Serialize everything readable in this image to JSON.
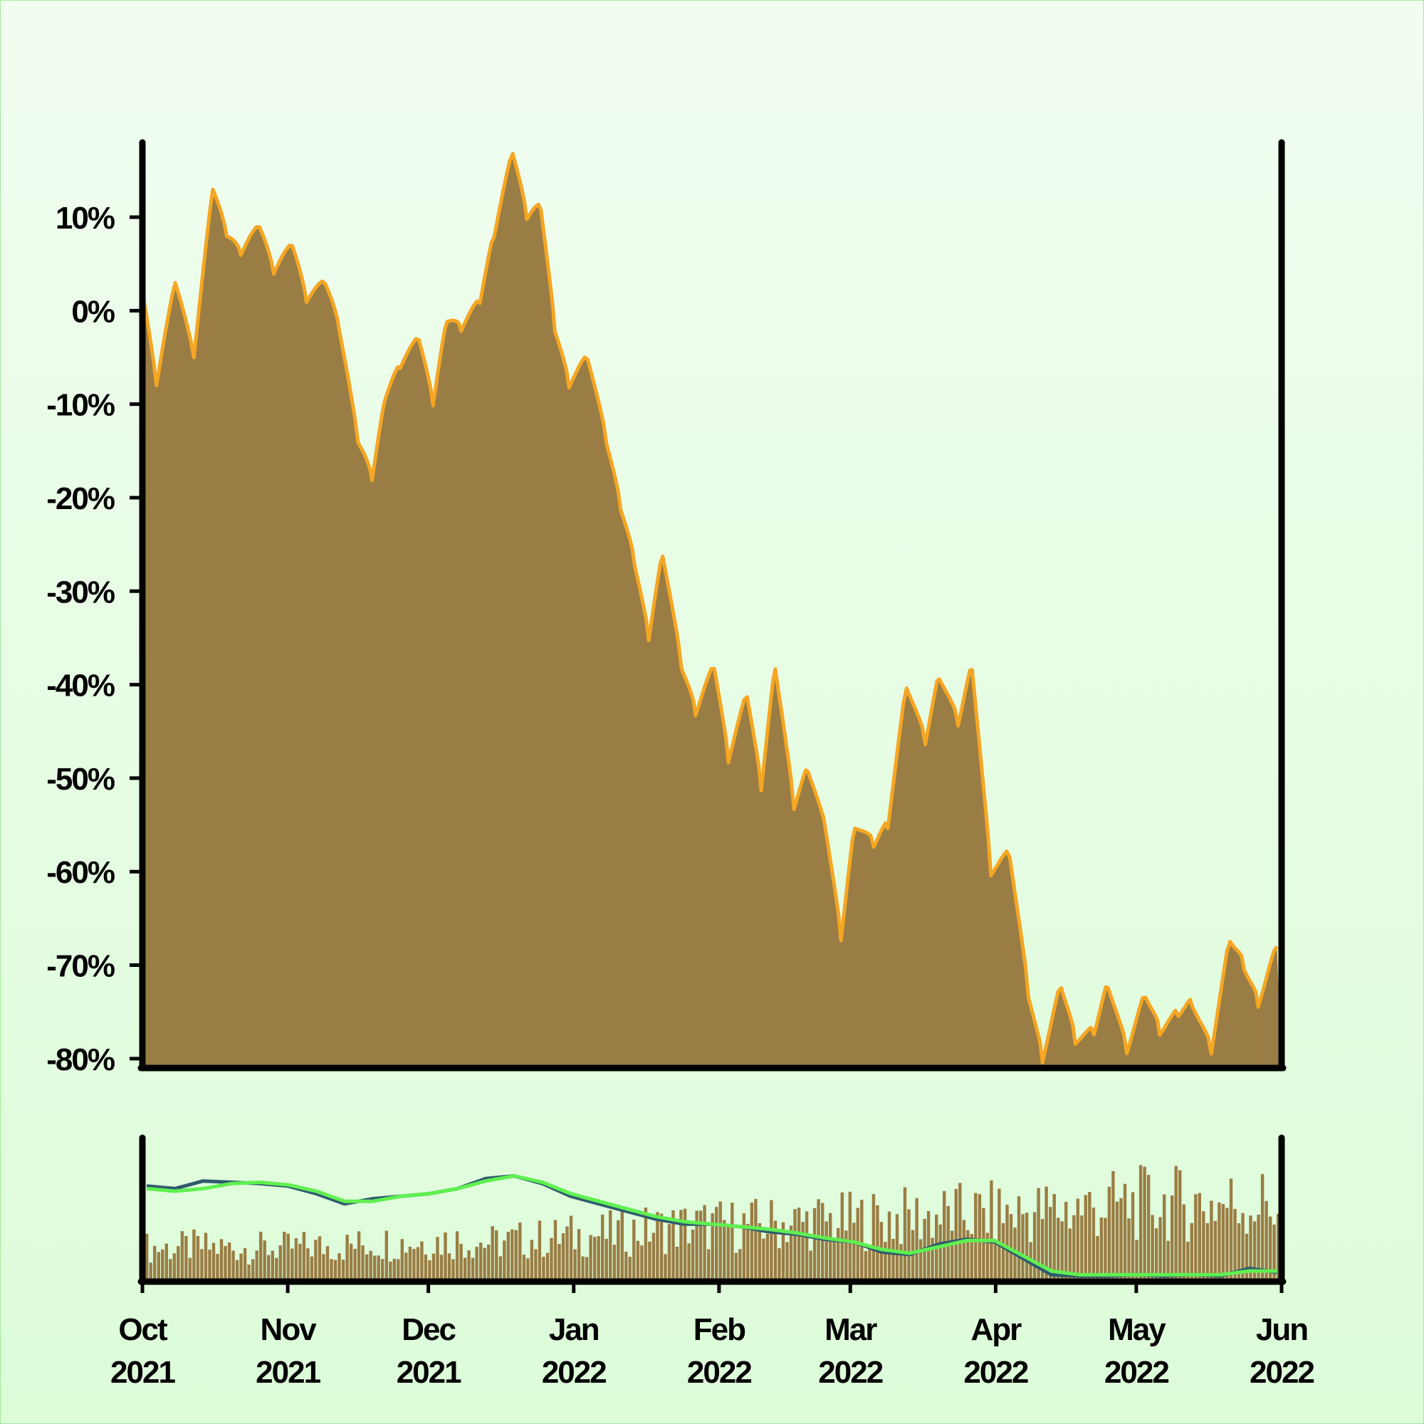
{
  "colors": {
    "background_top": "#f1fdf0",
    "background_bottom": "#dcfcd8",
    "price_fill": "#9a7d44",
    "price_line": "#f5a623",
    "volume_bar": "#9a7d44",
    "ma_short": "#2f5a6e",
    "ma_long": "#5ff050",
    "axis": "#000000"
  },
  "chart_data": [
    {
      "type": "area",
      "role": "price-change",
      "x_start": "2021-10-01",
      "x_end": "2022-06-01",
      "ylim": [
        -81,
        18
      ],
      "y_ticks": [
        10,
        0,
        -10,
        -20,
        -30,
        -40,
        -50,
        -60,
        -70,
        -80
      ],
      "y_tick_labels": [
        "10%",
        "0%",
        "-10%",
        "-20%",
        "-30%",
        "-40%",
        "-50%",
        "-60%",
        "-70%",
        "-80%"
      ],
      "grid": false,
      "x": [
        "2021-10-01",
        "2021-10-04",
        "2021-10-08",
        "2021-10-12",
        "2021-10-16",
        "2021-10-19",
        "2021-10-22",
        "2021-10-26",
        "2021-10-29",
        "2021-11-02",
        "2021-11-05",
        "2021-11-09",
        "2021-11-12",
        "2021-11-16",
        "2021-11-19",
        "2021-11-22",
        "2021-11-25",
        "2021-11-29",
        "2021-12-02",
        "2021-12-05",
        "2021-12-08",
        "2021-12-12",
        "2021-12-15",
        "2021-12-19",
        "2021-12-22",
        "2021-12-25",
        "2021-12-28",
        "2021-12-31",
        "2022-01-04",
        "2022-01-08",
        "2022-01-11",
        "2022-01-14",
        "2022-01-17",
        "2022-01-20",
        "2022-01-24",
        "2022-01-27",
        "2022-01-31",
        "2022-02-03",
        "2022-02-07",
        "2022-02-10",
        "2022-02-13",
        "2022-02-17",
        "2022-02-20",
        "2022-02-24",
        "2022-02-27",
        "2022-03-02",
        "2022-03-06",
        "2022-03-09",
        "2022-03-13",
        "2022-03-17",
        "2022-03-20",
        "2022-03-24",
        "2022-03-27",
        "2022-03-31",
        "2022-04-04",
        "2022-04-08",
        "2022-04-11",
        "2022-04-15",
        "2022-04-18",
        "2022-04-22",
        "2022-04-25",
        "2022-04-29",
        "2022-05-03",
        "2022-05-06",
        "2022-05-10",
        "2022-05-13",
        "2022-05-17",
        "2022-05-21",
        "2022-05-24",
        "2022-05-27",
        "2022-05-31"
      ],
      "values": [
        2,
        -8,
        3,
        -5,
        13,
        8,
        6,
        9,
        4,
        7,
        1,
        3,
        -2,
        -14,
        -18,
        -9,
        -6,
        -3,
        -10,
        -1,
        -2,
        1,
        8,
        17,
        10,
        11,
        -2,
        -8,
        -5,
        -14,
        -21,
        -27,
        -35,
        -26,
        -38,
        -43,
        -38,
        -48,
        -41,
        -51,
        -38,
        -53,
        -49,
        -56,
        -67,
        -55,
        -57,
        -55,
        -40,
        -46,
        -39,
        -44,
        -38,
        -60,
        -58,
        -73,
        -80,
        -72,
        -78,
        -77,
        -72,
        -79,
        -73,
        -77,
        -75,
        -74,
        -79,
        -67,
        -70,
        -74,
        -68
      ]
    },
    {
      "type": "bar",
      "role": "volume",
      "x_start": "2021-10-01",
      "x_end": "2022-06-01",
      "trend": [
        0.3,
        0.3,
        0.32,
        0.3,
        0.3,
        0.3,
        0.3,
        0.32,
        0.32,
        0.34,
        0.38,
        0.38,
        0.4,
        0.42,
        0.4,
        0.38,
        0.42,
        0.44,
        0.48,
        0.5,
        0.52,
        0.56,
        0.6,
        0.63,
        0.65,
        0.65,
        0.66,
        0.68,
        0.7,
        0.72,
        0.72,
        0.74,
        0.76,
        0.78,
        0.8,
        0.82,
        0.83,
        0.84,
        0.86,
        0.88
      ],
      "trend_late": [
        0.92,
        0.95,
        0.98,
        1.0,
        1.0,
        1.0,
        1.0,
        1.0,
        1.0,
        1.0
      ],
      "ma_short": [
        0.72,
        0.7,
        0.76,
        0.75,
        0.74,
        0.72,
        0.66,
        0.58,
        0.62,
        0.64,
        0.66,
        0.7,
        0.78,
        0.8,
        0.74,
        0.64,
        0.58,
        0.52,
        0.46,
        0.42,
        0.42,
        0.4,
        0.36,
        0.34,
        0.3,
        0.28,
        0.2,
        0.18,
        0.26,
        0.3,
        0.28,
        0.15,
        0.02,
        0.01,
        0.01,
        0.02,
        0.01,
        0.02,
        0.01,
        0.07,
        0.04
      ],
      "ma_long": [
        0.7,
        0.68,
        0.7,
        0.74,
        0.75,
        0.73,
        0.68,
        0.6,
        0.6,
        0.64,
        0.66,
        0.7,
        0.76,
        0.8,
        0.75,
        0.66,
        0.6,
        0.54,
        0.48,
        0.44,
        0.42,
        0.4,
        0.38,
        0.35,
        0.31,
        0.28,
        0.22,
        0.19,
        0.24,
        0.29,
        0.29,
        0.17,
        0.05,
        0.02,
        0.02,
        0.02,
        0.02,
        0.02,
        0.02,
        0.05,
        0.05
      ]
    }
  ],
  "x_axis": {
    "ticks": [
      {
        "date": "2021-10-01",
        "month": "Oct",
        "year": "2021"
      },
      {
        "date": "2021-11-01",
        "month": "Nov",
        "year": "2021"
      },
      {
        "date": "2021-12-01",
        "month": "Dec",
        "year": "2021"
      },
      {
        "date": "2022-01-01",
        "month": "Jan",
        "year": "2022"
      },
      {
        "date": "2022-02-01",
        "month": "Feb",
        "year": "2022"
      },
      {
        "date": "2022-03-01",
        "month": "Mar",
        "year": "2022"
      },
      {
        "date": "2022-04-01",
        "month": "Apr",
        "year": "2022"
      },
      {
        "date": "2022-05-01",
        "month": "May",
        "year": "2022"
      },
      {
        "date": "2022-06-01",
        "month": "Jun",
        "year": "2022"
      }
    ]
  }
}
